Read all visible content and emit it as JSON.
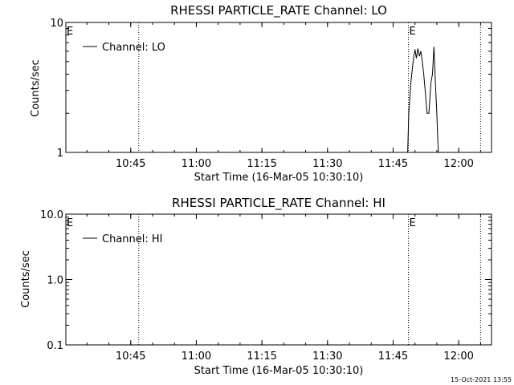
{
  "chart_data": [
    {
      "type": "line",
      "title": "RHESSI PARTICLE_RATE Channel: LO",
      "xlabel": "Start Time (16-Mar-05 10:30:10)",
      "ylabel": "Counts/sec",
      "y_scale": "log",
      "ylim": [
        1,
        10
      ],
      "xlim": [
        "10:30:10",
        "12:07:30"
      ],
      "x_ticks": [
        "10:45",
        "11:00",
        "11:15",
        "11:30",
        "11:45",
        "12:00"
      ],
      "y_ticks": [
        "1",
        "10"
      ],
      "legend": {
        "placement": "top-left",
        "entries": [
          "Channel: LO"
        ]
      },
      "grid": false,
      "annotations": [
        {
          "label": "E",
          "x": "10:30:10"
        },
        {
          "label": "E",
          "x": "11:48:30"
        }
      ],
      "vlines": [
        "10:46:50",
        "11:48:30",
        "12:05:00"
      ],
      "series": [
        {
          "name": "Channel: LO",
          "x": [
            "11:48:20",
            "11:48:35",
            "11:49:05",
            "11:49:35",
            "11:50:00",
            "11:50:20",
            "11:50:40",
            "11:51:00",
            "11:51:20",
            "11:51:40",
            "11:52:00",
            "11:52:20",
            "11:52:45",
            "11:53:10",
            "11:53:40",
            "11:54:00",
            "11:54:20",
            "11:54:40",
            "11:55:00",
            "11:55:10",
            "11:55:20",
            "11:55:40",
            "11:56:10"
          ],
          "values": [
            1.0,
            2.0,
            3.5,
            5.0,
            6.2,
            5.3,
            6.3,
            5.5,
            6.0,
            5.0,
            4.0,
            3.0,
            2.0,
            2.0,
            3.5,
            4.0,
            6.5,
            3.5,
            2.0,
            1.4,
            1.0,
            1.0,
            1.0
          ]
        }
      ]
    },
    {
      "type": "line",
      "title": "RHESSI PARTICLE_RATE Channel: HI",
      "xlabel": "Start Time (16-Mar-05 10:30:10)",
      "ylabel": "Counts/sec",
      "y_scale": "log",
      "ylim": [
        0.1,
        10
      ],
      "xlim": [
        "10:30:10",
        "12:07:30"
      ],
      "x_ticks": [
        "10:45",
        "11:00",
        "11:15",
        "11:30",
        "11:45",
        "12:00"
      ],
      "y_ticks": [
        "0.1",
        "1.0",
        "10.0"
      ],
      "legend": {
        "placement": "top-left",
        "entries": [
          "Channel: HI"
        ]
      },
      "grid": false,
      "annotations": [
        {
          "label": "E",
          "x": "10:30:10"
        },
        {
          "label": "E",
          "x": "11:48:30"
        }
      ],
      "vlines": [
        "10:46:50",
        "11:48:30",
        "12:05:00"
      ],
      "series": [
        {
          "name": "Channel: HI",
          "x": [],
          "values": []
        }
      ]
    }
  ],
  "footer": {
    "timestamp": "15-Oct-2021 13:55"
  }
}
